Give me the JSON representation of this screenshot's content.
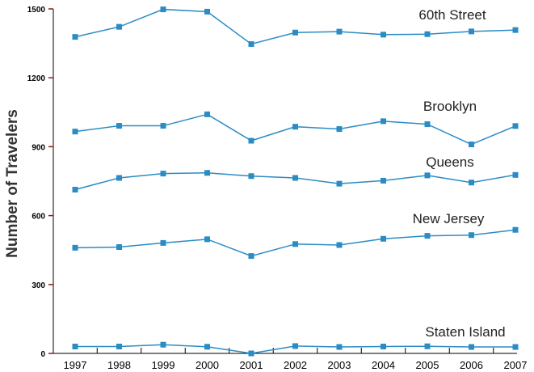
{
  "chart_data": {
    "type": "line",
    "title": "",
    "xlabel": "",
    "ylabel": "Number of Travelers",
    "ylim": [
      0,
      1500
    ],
    "yticks": [
      0,
      300,
      600,
      900,
      1200,
      1500
    ],
    "x": [
      "1997",
      "1998",
      "1999",
      "2000",
      "2001",
      "2002",
      "2003",
      "2004",
      "2005",
      "2006",
      "2007"
    ],
    "grid": false,
    "legend": "none",
    "colors": {
      "series": "#2b8cc4",
      "axis": "#000000",
      "ytick_mark": "#8b1a1a"
    },
    "series": [
      {
        "name": "60th Street",
        "values": [
          1378,
          1422,
          1498,
          1488,
          1347,
          1397,
          1401,
          1388,
          1390,
          1402,
          1408
        ]
      },
      {
        "name": "Brooklyn",
        "values": [
          966,
          991,
          991,
          1041,
          926,
          987,
          977,
          1011,
          998,
          910,
          990
        ]
      },
      {
        "name": "Queens",
        "values": [
          713,
          764,
          783,
          786,
          772,
          764,
          739,
          752,
          775,
          744,
          777
        ]
      },
      {
        "name": "New Jersey",
        "values": [
          460,
          463,
          481,
          497,
          424,
          476,
          472,
          499,
          512,
          515,
          538
        ]
      },
      {
        "name": "Staten Island",
        "values": [
          30,
          30,
          38,
          29,
          0,
          32,
          28,
          30,
          31,
          28,
          28
        ]
      }
    ]
  }
}
